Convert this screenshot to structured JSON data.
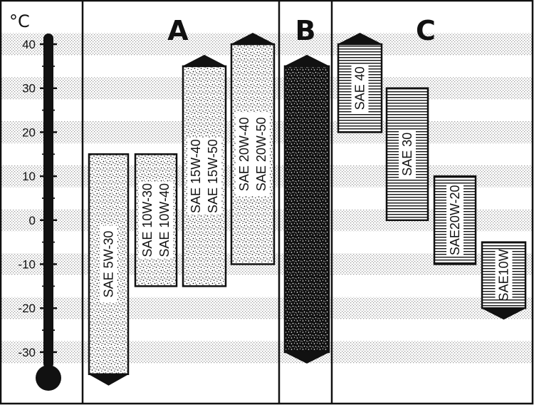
{
  "unit": "°C",
  "temperature_ticks": [
    "40",
    "30",
    "20",
    "10",
    "0",
    "-10",
    "-20",
    "-30"
  ],
  "columns": {
    "a": "A",
    "b": "B",
    "c": "C"
  },
  "chart_data": {
    "type": "range_bar",
    "unit": "°C",
    "ylim": [
      -35,
      40
    ],
    "columns": [
      "A",
      "B",
      "C"
    ],
    "bars": [
      {
        "column": "A",
        "labels": [
          "SAE  5W-30"
        ],
        "min": -35,
        "max": 15
      },
      {
        "column": "A",
        "labels": [
          "SAE 10W-30",
          "SAE 10W-40"
        ],
        "min": -15,
        "max": 15
      },
      {
        "column": "A",
        "labels": [
          "SAE 15W-40",
          "SAE 15W-50"
        ],
        "min": -15,
        "max": 35
      },
      {
        "column": "A",
        "labels": [
          "SAE  20W-40",
          "SAE  20W-50"
        ],
        "min": -10,
        "max": 40
      },
      {
        "column": "B",
        "labels": [],
        "min": -30,
        "max": 35
      },
      {
        "column": "C",
        "labels": [
          "SAE 40"
        ],
        "min": 20,
        "max": 40
      },
      {
        "column": "C",
        "labels": [
          "SAE 30"
        ],
        "min": 0,
        "max": 30
      },
      {
        "column": "C",
        "labels": [
          "SAE20W-20"
        ],
        "min": -10,
        "max": 10
      },
      {
        "column": "C",
        "labels": [
          "SAE10W"
        ],
        "min": -20,
        "max": -5
      }
    ]
  }
}
